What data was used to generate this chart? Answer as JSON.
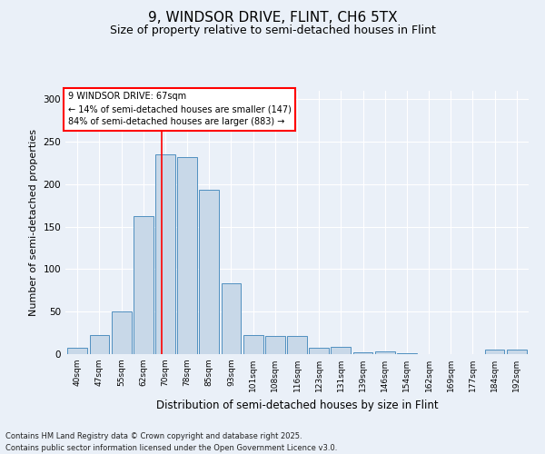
{
  "title": "9, WINDSOR DRIVE, FLINT, CH6 5TX",
  "subtitle": "Size of property relative to semi-detached houses in Flint",
  "xlabel": "Distribution of semi-detached houses by size in Flint",
  "ylabel": "Number of semi-detached properties",
  "categories": [
    "40sqm",
    "47sqm",
    "55sqm",
    "62sqm",
    "70sqm",
    "78sqm",
    "85sqm",
    "93sqm",
    "101sqm",
    "108sqm",
    "116sqm",
    "123sqm",
    "131sqm",
    "139sqm",
    "146sqm",
    "154sqm",
    "162sqm",
    "169sqm",
    "177sqm",
    "184sqm",
    "192sqm"
  ],
  "values": [
    7,
    22,
    50,
    163,
    235,
    232,
    193,
    83,
    22,
    21,
    21,
    7,
    9,
    2,
    3,
    1,
    0,
    0,
    0,
    5,
    5
  ],
  "bar_color": "#c8d8e8",
  "bar_edge_color": "#5090c0",
  "vline_x": 3.85,
  "vline_color": "red",
  "annotation_text": "9 WINDSOR DRIVE: 67sqm\n← 14% of semi-detached houses are smaller (147)\n84% of semi-detached houses are larger (883) →",
  "annotation_box_color": "white",
  "annotation_box_edge": "red",
  "footnote": "Contains HM Land Registry data © Crown copyright and database right 2025.\nContains public sector information licensed under the Open Government Licence v3.0.",
  "ylim": [
    0,
    310
  ],
  "yticks": [
    0,
    50,
    100,
    150,
    200,
    250,
    300
  ],
  "background_color": "#eaf0f8",
  "grid_color": "white",
  "title_fontsize": 11,
  "subtitle_fontsize": 9,
  "xlabel_fontsize": 8.5,
  "ylabel_fontsize": 8
}
